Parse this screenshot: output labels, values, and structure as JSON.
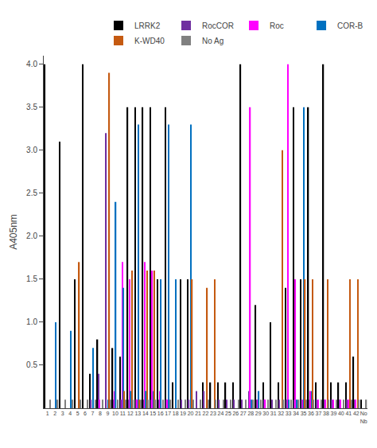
{
  "chart_data": {
    "type": "bar",
    "categories": [
      "1",
      "2",
      "3",
      "4",
      "5",
      "6",
      "7",
      "8",
      "9",
      "10",
      "11",
      "12",
      "13",
      "14",
      "15",
      "16",
      "17",
      "18",
      "19",
      "20",
      "21",
      "22",
      "23",
      "24",
      "25",
      "26",
      "27",
      "28",
      "29",
      "30",
      "31",
      "32",
      "33",
      "34",
      "35",
      "36",
      "37",
      "38",
      "39",
      "40",
      "41",
      "42",
      "No\nNb"
    ],
    "series": [
      {
        "name": "LRRK2",
        "color": "black",
        "values": [
          4.0,
          0.0,
          3.1,
          0.0,
          1.5,
          4.0,
          0.4,
          0.8,
          0.0,
          0.7,
          0.6,
          3.5,
          3.5,
          3.5,
          3.5,
          1.5,
          3.5,
          0.3,
          1.5,
          1.5,
          0.0,
          0.3,
          0.3,
          0.3,
          0.3,
          0.3,
          4.0,
          0.0,
          1.2,
          0.3,
          1.0,
          0.3,
          1.4,
          3.5,
          1.5,
          3.5,
          0.3,
          4.0,
          0.3,
          0.3,
          0.3,
          0.6,
          0.1
        ]
      },
      {
        "name": "RocCOR",
        "color": "#7030a0",
        "values": [
          0.0,
          0.0,
          0.0,
          0.0,
          0.0,
          0.0,
          0.1,
          0.4,
          3.2,
          0.1,
          0.1,
          0.1,
          0.1,
          0.1,
          0.1,
          0.1,
          0.1,
          0.0,
          0.1,
          0.1,
          0.2,
          0.2,
          0.0,
          0.1,
          0.1,
          0.1,
          0.1,
          0.2,
          0.1,
          0.1,
          0.1,
          0.1,
          0.1,
          0.1,
          0.1,
          0.1,
          0.1,
          0.1,
          0.1,
          0.1,
          0.1,
          0.1,
          0.0
        ]
      },
      {
        "name": "Roc",
        "color": "#ff00ff",
        "values": [
          0.0,
          0.0,
          0.0,
          0.0,
          0.0,
          0.0,
          0.0,
          0.1,
          0.0,
          0.2,
          1.7,
          1.5,
          0.1,
          1.7,
          1.6,
          0.2,
          0.1,
          0.0,
          0.0,
          0.0,
          0.0,
          0.0,
          0.0,
          0.0,
          0.0,
          0.0,
          0.0,
          3.5,
          0.1,
          0.1,
          0.0,
          0.0,
          4.0,
          1.5,
          0.1,
          0.2,
          0.1,
          0.1,
          0.1,
          0.1,
          0.1,
          0.1,
          0.0
        ]
      },
      {
        "name": "COR-B",
        "color": "#0070c0",
        "values": [
          0.0,
          1.0,
          0.0,
          0.9,
          0.0,
          0.0,
          0.7,
          0.0,
          0.1,
          2.4,
          1.4,
          0.2,
          3.3,
          0.2,
          0.2,
          1.5,
          3.3,
          1.5,
          0.0,
          3.3,
          0.0,
          0.0,
          0.0,
          0.0,
          0.0,
          0.0,
          0.0,
          0.1,
          0.2,
          0.0,
          0.0,
          0.0,
          0.1,
          0.1,
          3.5,
          0.2,
          0.0,
          0.0,
          0.0,
          0.0,
          0.0,
          0.0,
          0.0
        ]
      },
      {
        "name": "K-WD40",
        "color": "#c55a11",
        "values": [
          0.0,
          0.0,
          0.0,
          0.0,
          1.7,
          0.0,
          0.0,
          0.0,
          3.9,
          0.0,
          0.2,
          1.6,
          0.1,
          1.6,
          1.6,
          0.0,
          0.0,
          0.0,
          0.0,
          1.5,
          0.0,
          1.4,
          1.5,
          0.0,
          0.0,
          0.0,
          0.0,
          0.0,
          0.0,
          0.0,
          0.0,
          3.0,
          0.0,
          0.0,
          1.5,
          1.5,
          0.0,
          1.5,
          0.0,
          0.0,
          1.5,
          1.5,
          0.0
        ]
      },
      {
        "name": "No Ag",
        "color": "#808080",
        "values": [
          0.1,
          0.1,
          0.1,
          0.1,
          0.1,
          0.1,
          0.1,
          0.1,
          0.1,
          0.1,
          0.1,
          0.1,
          0.1,
          0.1,
          0.1,
          0.1,
          0.1,
          0.1,
          0.1,
          0.1,
          0.1,
          0.1,
          0.1,
          0.1,
          0.1,
          0.1,
          0.1,
          0.1,
          0.1,
          0.1,
          0.1,
          0.1,
          0.1,
          0.1,
          0.1,
          0.1,
          0.1,
          0.1,
          0.1,
          0.1,
          0.1,
          0.1,
          0.1
        ]
      }
    ],
    "ylabel": "A405nm",
    "ylim": [
      0,
      4.1
    ],
    "yticks": [
      0.5,
      {
        "value": 1.0,
        "label": "1.0"
      },
      1.5,
      {
        "value": 2.0,
        "label": "2.0"
      },
      2.5,
      {
        "value": 3.0,
        "label": "3.0"
      },
      3.5,
      {
        "value": 4.0,
        "label": "4.0"
      }
    ],
    "grid": false,
    "legend": "upper right"
  }
}
